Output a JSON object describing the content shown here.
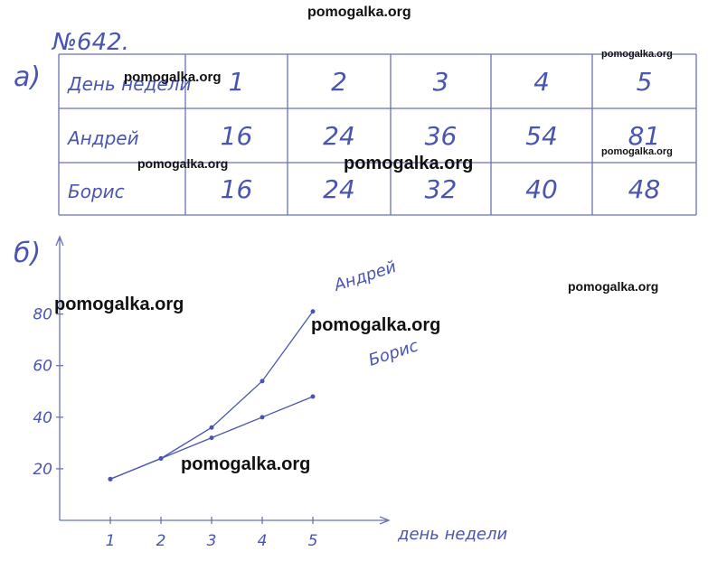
{
  "header": {
    "problem": "№642.",
    "part_a": "а)",
    "part_b": "б)"
  },
  "table": {
    "rows": [
      [
        "День недели",
        "1",
        "2",
        "3",
        "4",
        "5"
      ],
      [
        "Андрей",
        "16",
        "24",
        "36",
        "54",
        "81"
      ],
      [
        "Борис",
        "16",
        "24",
        "32",
        "40",
        "48"
      ]
    ]
  },
  "chart_data": {
    "type": "line",
    "x_label": "день недели",
    "x": [
      1,
      2,
      3,
      4,
      5
    ],
    "series": [
      {
        "name": "Андрей",
        "color": "#4a55b0",
        "values": [
          16,
          24,
          36,
          54,
          81
        ]
      },
      {
        "name": "Борис",
        "color": "#4a55b0",
        "values": [
          16,
          24,
          32,
          40,
          48
        ]
      }
    ],
    "xlim": [
      0,
      6.5
    ],
    "ylim": [
      0,
      110
    ],
    "xticks": [
      1,
      2,
      3,
      4,
      5
    ],
    "yticks": [
      20,
      40,
      60,
      80
    ]
  },
  "watermarks": [
    "pomogalka.org",
    "pomogalka.org",
    "pomogalka.org",
    "pomogalka.org",
    "pomogalka.org",
    "pomogalka.org",
    "pomogalka.org",
    "pomogalka.org",
    "pomogalka.org",
    "pomogalka.org"
  ]
}
